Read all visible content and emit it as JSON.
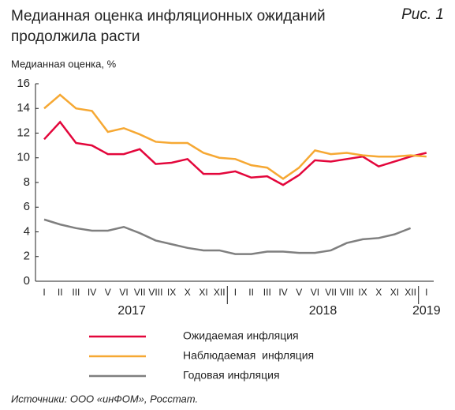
{
  "chart_data": {
    "type": "line",
    "title": "Медианная оценка инфляционных ожиданий продолжила расти",
    "figure_label": "Рис. 1",
    "y_label": "Медианная оценка, %",
    "source": "Источники: ООО «инФОМ», Росстат.",
    "categories": [
      "I",
      "II",
      "III",
      "IV",
      "V",
      "VI",
      "VII",
      "VIII",
      "IX",
      "X",
      "XI",
      "XII",
      "I",
      "II",
      "III",
      "IV",
      "V",
      "VI",
      "VII",
      "VIII",
      "IX",
      "X",
      "XI",
      "XII",
      "I"
    ],
    "years": [
      "2017",
      "2018",
      "2019"
    ],
    "ylim": [
      0,
      16
    ],
    "yticks": [
      0,
      2,
      4,
      6,
      8,
      10,
      12,
      14,
      16
    ],
    "grid": false,
    "series": [
      {
        "name": "Ожидаемая инфляция",
        "color": "#e3063b",
        "values": [
          11.5,
          12.9,
          11.2,
          11.0,
          10.3,
          10.3,
          10.7,
          9.5,
          9.6,
          9.9,
          8.7,
          8.7,
          8.9,
          8.4,
          8.5,
          7.8,
          8.6,
          9.8,
          9.7,
          9.9,
          10.1,
          9.3,
          9.7,
          10.1,
          10.4
        ]
      },
      {
        "name": "Наблюдаемая  инфляция",
        "color": "#f6a833",
        "values": [
          14.0,
          15.1,
          14.0,
          13.8,
          12.1,
          12.4,
          11.9,
          11.3,
          11.2,
          11.2,
          10.4,
          10.0,
          9.9,
          9.4,
          9.2,
          8.3,
          9.2,
          10.6,
          10.3,
          10.4,
          10.2,
          10.1,
          10.1,
          10.2,
          10.1
        ]
      },
      {
        "name": "Годовая инфляция",
        "color": "#7f7f7f",
        "values": [
          5.0,
          4.6,
          4.3,
          4.1,
          4.1,
          4.4,
          3.9,
          3.3,
          3.0,
          2.7,
          2.5,
          2.5,
          2.2,
          2.2,
          2.4,
          2.4,
          2.3,
          2.3,
          2.5,
          3.1,
          3.4,
          3.5,
          3.8,
          4.3,
          null
        ]
      }
    ]
  }
}
